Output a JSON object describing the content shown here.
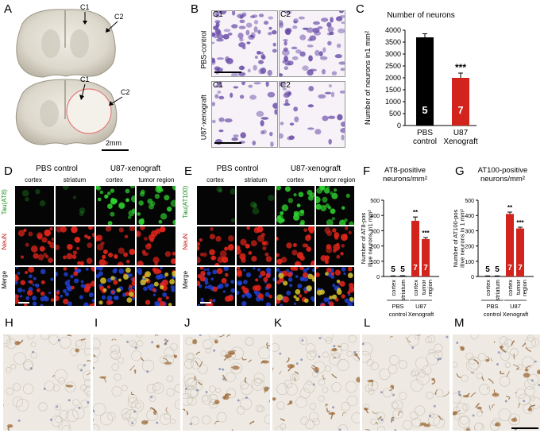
{
  "panels": {
    "A": {
      "label": "A",
      "c1": "C1",
      "c2": "C2",
      "scale": "2mm"
    },
    "B": {
      "label": "B",
      "c1": "C1",
      "c2": "C2",
      "row1": "PBS-control",
      "row2": "U87-xenograft"
    },
    "C": {
      "label": "C",
      "title": "Number of neurons"
    },
    "D": {
      "label": "D",
      "group1": "PBS  control",
      "group2": "U87-xenograft",
      "cols": [
        "cortex",
        "striatum",
        "cortex",
        "tumor region"
      ],
      "rows": [
        "Tau(AT8)",
        "NeuN",
        "Merge"
      ]
    },
    "E": {
      "label": "E",
      "group1": "PBS  control",
      "group2": "U87-xenograft",
      "cols": [
        "cortex",
        "striatum",
        "cortex",
        "tumor region"
      ],
      "rows": [
        "Tau(AT100)",
        "NeuN",
        "Merge"
      ]
    },
    "F": {
      "label": "F",
      "title1": "AT8-positive",
      "title2": "neurons/mm²"
    },
    "G": {
      "label": "G",
      "title1": "AT100-positive",
      "title2": "neurons/mm²"
    },
    "H": {
      "label": "H"
    },
    "I": {
      "label": "I"
    },
    "J": {
      "label": "J"
    },
    "K": {
      "label": "K"
    },
    "L": {
      "label": "L"
    },
    "M": {
      "label": "M"
    }
  },
  "chart_data": [
    {
      "panel": "C",
      "type": "bar",
      "title": "Number of neurons",
      "ylabel": "Number of neurons in1 mm²",
      "ylim": [
        0,
        4000
      ],
      "yticks": [
        0,
        500,
        1000,
        1500,
        2000,
        2500,
        3000,
        3500,
        4000
      ],
      "categories": [
        "PBS control",
        "U87 Xenograft"
      ],
      "category_lines": [
        [
          "PBS",
          "control"
        ],
        [
          "U87",
          "Xenograft"
        ]
      ],
      "values": [
        3700,
        2000
      ],
      "errors": [
        150,
        200
      ],
      "n_labels": [
        "5",
        "7"
      ],
      "colors": [
        "#000000",
        "#d2231c"
      ],
      "significance": [
        "",
        "***"
      ]
    },
    {
      "panel": "F",
      "type": "bar",
      "ylabel": "Number of AT8-positive neurons in1 mm²",
      "ylim": [
        0,
        500
      ],
      "yticks": [
        0,
        100,
        200,
        300,
        400,
        500
      ],
      "categories": [
        "cortex",
        "striatum",
        "cortex",
        "tumor region"
      ],
      "values": [
        3,
        4,
        365,
        245
      ],
      "errors": [
        1,
        1,
        25,
        10
      ],
      "n_labels": [
        "5",
        "5",
        "7",
        "7"
      ],
      "colors": [
        "#111111",
        "#111111",
        "#d2231c",
        "#d2231c"
      ],
      "significance": [
        "",
        "",
        "**",
        "***"
      ],
      "groups": [
        [
          "PBS",
          "control"
        ],
        [
          "U87",
          "Xenograft"
        ]
      ]
    },
    {
      "panel": "G",
      "type": "bar",
      "ylabel": "Number of AT100-positive neurons in 1 mm²",
      "ylim": [
        0,
        500
      ],
      "yticks": [
        0,
        100,
        200,
        300,
        400,
        500
      ],
      "categories": [
        "cortex",
        "striatum",
        "cortex",
        "tumor region"
      ],
      "values": [
        3,
        3,
        410,
        315
      ],
      "errors": [
        1,
        1,
        12,
        8
      ],
      "n_labels": [
        "5",
        "5",
        "7",
        "7"
      ],
      "colors": [
        "#111111",
        "#111111",
        "#d2231c",
        "#d2231c"
      ],
      "significance": [
        "",
        "",
        "**",
        "***"
      ],
      "groups": [
        [
          "PBS",
          "control"
        ],
        [
          "U87",
          "Xenograft"
        ]
      ]
    }
  ]
}
